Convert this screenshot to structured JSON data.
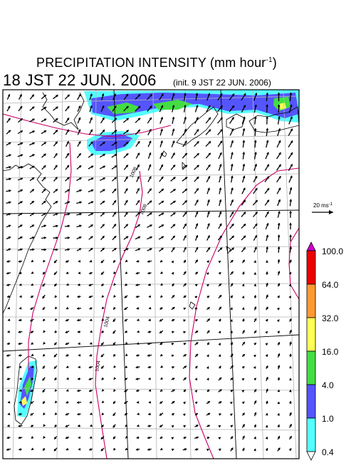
{
  "title": {
    "main": "PRECIPITATION INTENSITY (mm hour",
    "unit_exponent": "-1",
    "close": ")"
  },
  "valid_time": "18 JST 22 JUN. 2006",
  "init_time": "(init. 9 JST 22 JUN. 2006)",
  "reference_vector": {
    "label": "20 ms",
    "exponent": "-1"
  },
  "isobar_labels": [
    "1008",
    "1008",
    "1004",
    "1004"
  ],
  "colorbar": {
    "levels": [
      "100.0",
      "64.0",
      "32.0",
      "16.0",
      "4.0",
      "1.0",
      "0.4"
    ],
    "colors": [
      "#cc00cc",
      "#ee0000",
      "#ff9933",
      "#ffff55",
      "#44dd44",
      "#5555ff",
      "#55ffff",
      "#ffffff"
    ]
  },
  "colors": {
    "isobar": "#cc0066",
    "grid": "#b4b4b4",
    "coast": "#000000"
  }
}
